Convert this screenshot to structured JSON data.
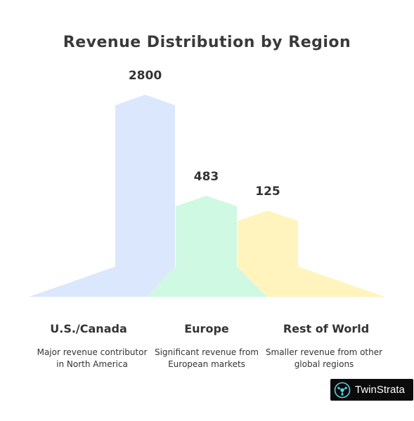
{
  "chart_data": {
    "type": "bar",
    "title": "Revenue Distribution by Region",
    "categories": [
      "U.S./Canada",
      "Europe",
      "Rest of World"
    ],
    "values": [
      2800,
      483,
      125
    ],
    "value_labels": [
      "2800",
      "483",
      "125"
    ],
    "descriptions": [
      "Major revenue contributor in North America",
      "Significant revenue from European markets",
      "Smaller revenue from other global regions"
    ],
    "colors": [
      "#dbe7fd",
      "#cff9e2",
      "#fff4bd"
    ],
    "grid": false,
    "legend": "none"
  },
  "brand": {
    "name": "TwinStrata",
    "icon": "twinstrata-logo-icon"
  }
}
